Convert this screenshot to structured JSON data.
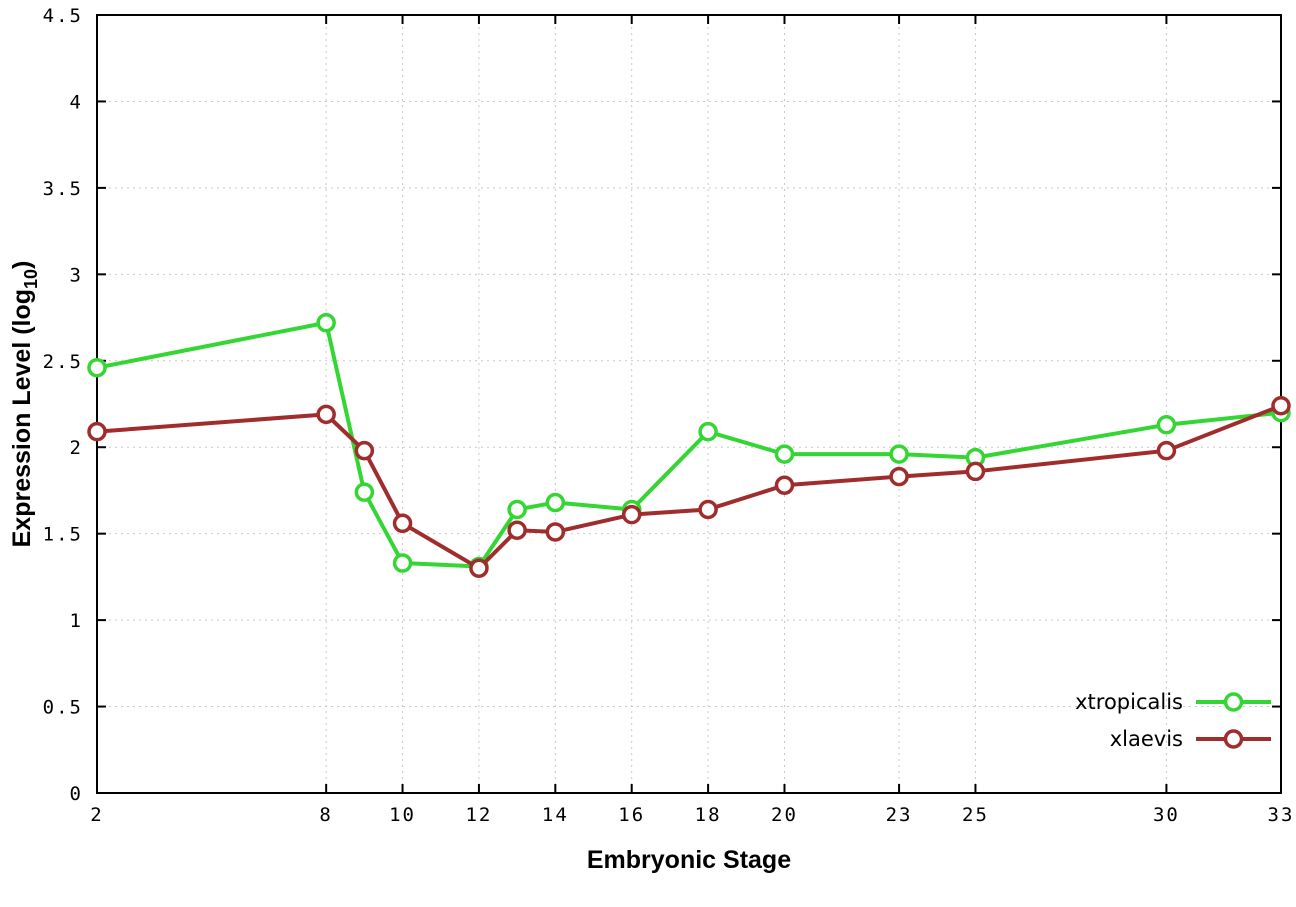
{
  "chart_data": {
    "type": "line",
    "title": "",
    "xlabel": "Embryonic Stage",
    "ylabel": "Expression Level (log10)",
    "ylabel_parts": {
      "main": "Expression Level (log",
      "sub": "10",
      "end": ")"
    },
    "x": [
      2,
      8,
      9,
      10,
      12,
      13,
      14,
      16,
      18,
      20,
      23,
      25,
      30,
      33
    ],
    "xlim": [
      2,
      33
    ],
    "ylim": [
      0,
      4.5
    ],
    "xticks": [
      2,
      8,
      10,
      12,
      14,
      16,
      18,
      20,
      23,
      25,
      30,
      33
    ],
    "xtick_labels": [
      "2",
      "8",
      "10",
      "12",
      "14",
      "16",
      "18",
      "20",
      "23",
      "25",
      "30",
      "33"
    ],
    "yticks": [
      0,
      0.5,
      1,
      1.5,
      2,
      2.5,
      3,
      3.5,
      4,
      4.5
    ],
    "ytick_labels": [
      "0",
      "0.5",
      "1",
      "1.5",
      "2",
      "2.5",
      "3",
      "3.5",
      "4",
      "4.5"
    ],
    "grid": true,
    "legend_position": "bottom-right",
    "series": [
      {
        "name": "xtropicalis",
        "color": "#33d633",
        "values": [
          2.46,
          2.72,
          1.74,
          1.33,
          1.31,
          1.64,
          1.68,
          1.64,
          2.09,
          1.96,
          1.96,
          1.94,
          2.13,
          2.2
        ]
      },
      {
        "name": "xlaevis",
        "color": "#a02c2c",
        "values": [
          2.09,
          2.19,
          1.98,
          1.56,
          1.3,
          1.52,
          1.51,
          1.61,
          1.64,
          1.78,
          1.83,
          1.86,
          1.98,
          2.24
        ]
      }
    ]
  }
}
